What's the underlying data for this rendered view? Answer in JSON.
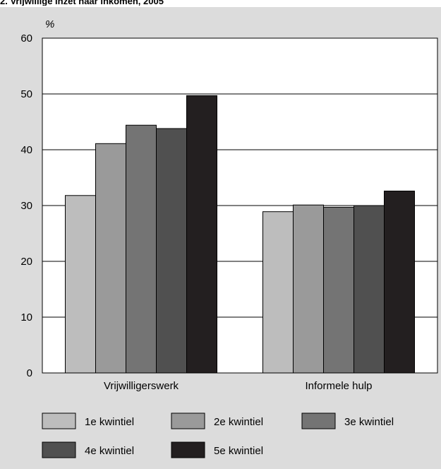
{
  "chart_data": {
    "type": "bar",
    "title": "2. Vrijwillige inzet naar inkomen, 2005",
    "ylabel": "%",
    "xlabel": "",
    "ylim": [
      0,
      60
    ],
    "yticks": [
      0,
      10,
      20,
      30,
      40,
      50,
      60
    ],
    "grid": true,
    "legend_position": "bottom",
    "categories": [
      "Vrijwilligerswerk",
      "Informele hulp"
    ],
    "series": [
      {
        "name": "1e kwintiel",
        "color": "#bdbdbd",
        "values": [
          31.8,
          28.9
        ]
      },
      {
        "name": "2e kwintiel",
        "color": "#9a9a9a",
        "values": [
          41.1,
          30.1
        ]
      },
      {
        "name": "3e kwintiel",
        "color": "#747474",
        "values": [
          44.4,
          29.7
        ]
      },
      {
        "name": "4e kwintiel",
        "color": "#505050",
        "values": [
          43.8,
          30.0
        ]
      },
      {
        "name": "5e kwintiel",
        "color": "#231f20",
        "values": [
          49.7,
          32.6
        ]
      }
    ]
  }
}
